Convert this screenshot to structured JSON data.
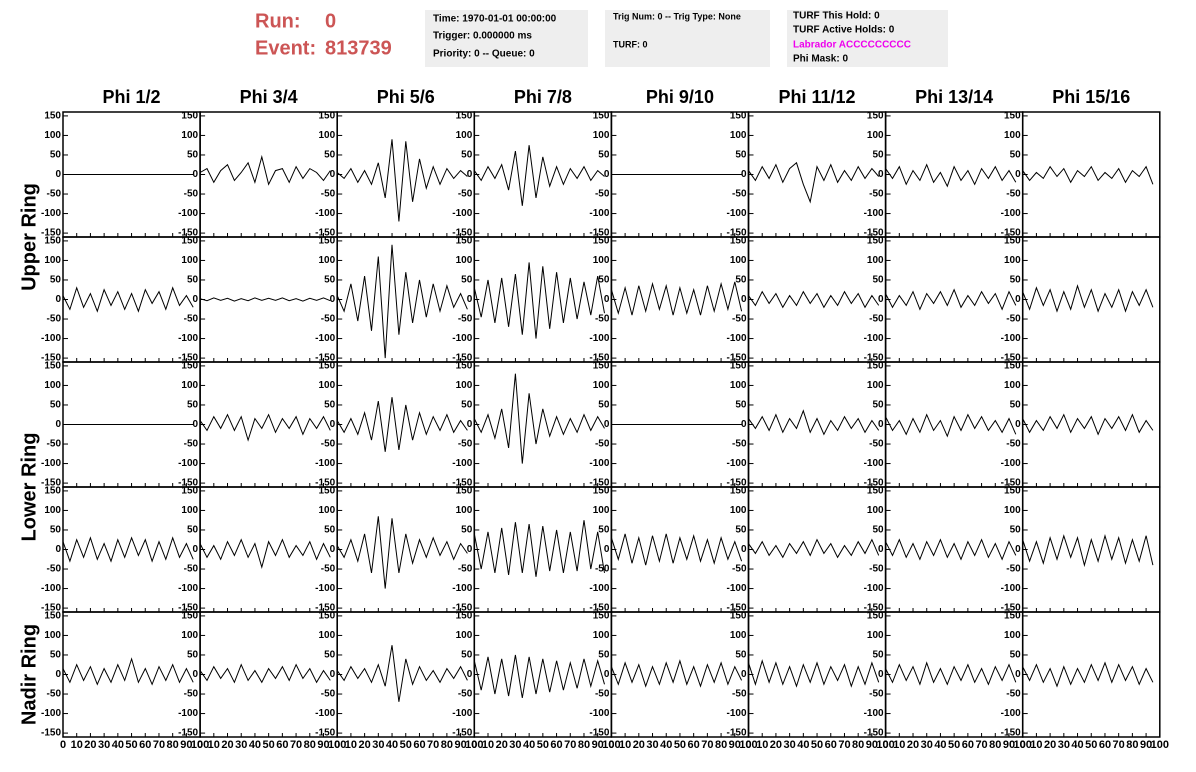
{
  "header": {
    "run_label": "Run:",
    "run": 0,
    "event_label": "Event:",
    "event": 813739,
    "info_box_1": [
      "Time: 1970-01-01 00:00:00",
      "Trigger: 0.000000 ms",
      "Priority: 0 -- Queue: 0"
    ],
    "info_box_2": [
      "Trig Num: 0 -- Trig Type: None",
      "TURF: 0"
    ],
    "info_box_3": [
      "TURF This Hold: 0",
      "TURF Active Holds: 0",
      "Labrador ACCCCCCCCC",
      "Phi Mask: 0"
    ]
  },
  "chart_data": {
    "type": "line",
    "color": "#000000",
    "columns": [
      "Phi 1/2",
      "Phi 3/4",
      "Phi 5/6",
      "Phi 7/8",
      "Phi 9/10",
      "Phi 11/12",
      "Phi 13/14",
      "Phi 15/16"
    ],
    "rows": [
      "Upper Ring",
      "Lower Ring",
      "Nadir Ring"
    ],
    "xlim": [
      0,
      100
    ],
    "xticks": [
      0,
      10,
      20,
      30,
      40,
      50,
      60,
      70,
      80,
      90,
      100
    ],
    "ylim": [
      -160,
      160
    ],
    "yticks": [
      -150,
      -100,
      -50,
      0,
      50,
      100,
      150
    ],
    "x": [
      0,
      5,
      10,
      15,
      20,
      25,
      30,
      35,
      40,
      45,
      50,
      55,
      60,
      65,
      70,
      75,
      80,
      85,
      90,
      95
    ],
    "panels": [
      {
        "values": [
          0,
          0,
          0,
          0,
          0,
          0,
          0,
          0,
          0,
          0,
          0,
          0,
          0,
          0,
          0,
          0,
          0,
          0,
          0,
          0
        ]
      },
      {
        "values": [
          5,
          15,
          -20,
          10,
          25,
          -15,
          5,
          30,
          -20,
          45,
          -25,
          10,
          15,
          -20,
          20,
          -10,
          15,
          5,
          -15,
          10
        ]
      },
      {
        "values": [
          5,
          -10,
          15,
          -20,
          10,
          -25,
          30,
          -60,
          90,
          -120,
          85,
          -70,
          40,
          -35,
          20,
          -25,
          15,
          -10,
          10,
          -5
        ]
      },
      {
        "values": [
          10,
          -15,
          20,
          -10,
          25,
          -40,
          60,
          -80,
          75,
          -60,
          45,
          -30,
          20,
          -25,
          15,
          -10,
          20,
          -15,
          10,
          -5
        ]
      },
      {
        "values": [
          0,
          0,
          0,
          0,
          0,
          0,
          0,
          0,
          0,
          0,
          0,
          0,
          0,
          0,
          0,
          0,
          0,
          0,
          0,
          0
        ]
      },
      {
        "values": [
          10,
          -15,
          20,
          -10,
          25,
          -20,
          15,
          30,
          -25,
          -70,
          20,
          -15,
          25,
          -20,
          10,
          -15,
          20,
          -10,
          15,
          -5
        ]
      },
      {
        "values": [
          15,
          -10,
          20,
          -25,
          10,
          -15,
          25,
          -20,
          5,
          -30,
          20,
          -15,
          10,
          -25,
          15,
          -10,
          20,
          -15,
          10,
          -20
        ]
      },
      {
        "values": [
          10,
          -15,
          5,
          -10,
          20,
          -5,
          15,
          -20,
          10,
          -5,
          20,
          -15,
          5,
          -10,
          15,
          -20,
          10,
          -5,
          20,
          -25
        ]
      },
      {
        "values": [
          10,
          -25,
          30,
          -20,
          15,
          -30,
          25,
          -15,
          20,
          -25,
          15,
          -30,
          25,
          -10,
          20,
          -25,
          30,
          -15,
          10,
          -20
        ]
      },
      {
        "values": [
          2,
          -3,
          4,
          -2,
          3,
          -4,
          2,
          -3,
          4,
          -2,
          3,
          -2,
          4,
          -3,
          2,
          -4,
          3,
          -2,
          4,
          -3
        ]
      },
      {
        "values": [
          10,
          -30,
          40,
          -55,
          60,
          -80,
          110,
          -150,
          140,
          -90,
          70,
          -60,
          50,
          -45,
          40,
          -30,
          35,
          -20,
          15,
          -25
        ]
      },
      {
        "values": [
          30,
          -45,
          50,
          -60,
          55,
          -70,
          65,
          -90,
          95,
          -100,
          85,
          -75,
          70,
          -60,
          55,
          -50,
          45,
          -40,
          60,
          -35
        ]
      },
      {
        "values": [
          25,
          -35,
          30,
          -40,
          35,
          -30,
          40,
          -25,
          35,
          -40,
          30,
          -35,
          25,
          -40,
          35,
          -30,
          40,
          -25,
          45,
          -30
        ]
      },
      {
        "values": [
          10,
          -15,
          20,
          -10,
          15,
          -20,
          10,
          -15,
          20,
          -10,
          15,
          -20,
          10,
          -15,
          20,
          -10,
          15,
          -20,
          10,
          -15
        ]
      },
      {
        "values": [
          15,
          -20,
          10,
          -15,
          20,
          -25,
          15,
          -10,
          20,
          -15,
          25,
          -20,
          10,
          -15,
          20,
          -10,
          15,
          -25,
          20,
          -15
        ]
      },
      {
        "values": [
          20,
          -25,
          30,
          -15,
          25,
          -30,
          20,
          -25,
          35,
          -20,
          25,
          -30,
          15,
          -20,
          25,
          -30,
          20,
          -15,
          25,
          -20
        ]
      },
      {
        "values": [
          0,
          0,
          0,
          0,
          0,
          0,
          0,
          0,
          0,
          0,
          0,
          0,
          0,
          0,
          0,
          0,
          0,
          0,
          0,
          0
        ]
      },
      {
        "values": [
          10,
          -15,
          20,
          -10,
          25,
          -15,
          20,
          -40,
          15,
          -10,
          25,
          -20,
          15,
          -10,
          20,
          -25,
          15,
          -10,
          20,
          -15
        ]
      },
      {
        "values": [
          10,
          -20,
          15,
          -25,
          30,
          -40,
          60,
          -70,
          70,
          -65,
          50,
          -40,
          30,
          -25,
          20,
          -15,
          25,
          -20,
          10,
          -15
        ]
      },
      {
        "values": [
          15,
          -20,
          25,
          -35,
          40,
          -60,
          130,
          -100,
          80,
          -50,
          40,
          -30,
          20,
          -25,
          15,
          -20,
          25,
          -15,
          20,
          -10
        ]
      },
      {
        "values": [
          0,
          0,
          0,
          0,
          0,
          0,
          0,
          0,
          0,
          0,
          0,
          0,
          0,
          0,
          0,
          0,
          0,
          0,
          0,
          0
        ]
      },
      {
        "values": [
          15,
          -10,
          20,
          -15,
          25,
          -20,
          15,
          -10,
          35,
          -20,
          15,
          -25,
          10,
          -15,
          20,
          -10,
          15,
          -20,
          10,
          -15
        ]
      },
      {
        "values": [
          20,
          -15,
          10,
          -25,
          15,
          -20,
          25,
          -15,
          10,
          -30,
          20,
          -15,
          25,
          -10,
          20,
          -15,
          10,
          -20,
          15,
          -25
        ]
      },
      {
        "values": [
          15,
          -20,
          10,
          -15,
          20,
          -10,
          25,
          -20,
          15,
          -10,
          20,
          -25,
          15,
          -10,
          20,
          -15,
          25,
          -20,
          10,
          -15
        ]
      },
      {
        "values": [
          20,
          -30,
          25,
          -20,
          30,
          -25,
          15,
          -30,
          25,
          -20,
          30,
          -15,
          25,
          -30,
          20,
          -25,
          30,
          -20,
          15,
          -25
        ]
      },
      {
        "values": [
          15,
          -20,
          10,
          -25,
          20,
          -15,
          25,
          -20,
          15,
          -45,
          20,
          -15,
          25,
          -20,
          10,
          -15,
          20,
          -25,
          15,
          -20
        ]
      },
      {
        "values": [
          10,
          -20,
          25,
          -30,
          40,
          -60,
          85,
          -100,
          80,
          -60,
          40,
          -35,
          25,
          -20,
          30,
          -15,
          20,
          -25,
          15,
          -10
        ]
      },
      {
        "values": [
          40,
          -50,
          45,
          -60,
          55,
          -65,
          70,
          -60,
          65,
          -70,
          60,
          -55,
          50,
          -60,
          45,
          -55,
          75,
          -50,
          45,
          -60
        ]
      },
      {
        "values": [
          30,
          -25,
          40,
          -35,
          30,
          -40,
          35,
          -30,
          40,
          -35,
          30,
          -25,
          35,
          -30,
          25,
          -35,
          30,
          -25,
          20,
          -30
        ]
      },
      {
        "values": [
          15,
          -10,
          20,
          -15,
          10,
          -20,
          15,
          -10,
          20,
          -15,
          25,
          -10,
          15,
          -20,
          10,
          -15,
          20,
          -10,
          25,
          -15
        ]
      },
      {
        "values": [
          20,
          -15,
          25,
          -20,
          15,
          -25,
          20,
          -15,
          25,
          -20,
          15,
          -25,
          20,
          -15,
          25,
          -20,
          15,
          -25,
          20,
          -15
        ]
      },
      {
        "values": [
          25,
          -30,
          20,
          -35,
          30,
          -25,
          35,
          -20,
          30,
          -40,
          25,
          -30,
          35,
          -25,
          30,
          -35,
          25,
          -30,
          35,
          -40
        ]
      },
      {
        "values": [
          15,
          -20,
          25,
          -15,
          20,
          -25,
          15,
          -20,
          25,
          -15,
          40,
          -20,
          15,
          -25,
          20,
          -15,
          25,
          -20,
          15,
          -20
        ]
      },
      {
        "values": [
          10,
          -15,
          20,
          -10,
          15,
          -20,
          25,
          -15,
          10,
          -20,
          15,
          -10,
          20,
          -15,
          25,
          -10,
          15,
          -20,
          10,
          -15
        ]
      },
      {
        "values": [
          10,
          -15,
          20,
          -10,
          15,
          -20,
          25,
          -30,
          75,
          -70,
          40,
          -25,
          20,
          -15,
          10,
          -20,
          15,
          -10,
          20,
          -15
        ]
      },
      {
        "values": [
          35,
          -40,
          45,
          -50,
          40,
          -55,
          50,
          -60,
          45,
          -50,
          40,
          -45,
          35,
          -40,
          30,
          -35,
          40,
          -30,
          35,
          -25
        ]
      },
      {
        "values": [
          20,
          -25,
          30,
          -20,
          25,
          -30,
          20,
          -25,
          30,
          -20,
          35,
          -25,
          20,
          -30,
          25,
          -20,
          30,
          -25,
          20,
          -15
        ]
      },
      {
        "values": [
          30,
          -25,
          35,
          -20,
          30,
          -25,
          20,
          -30,
          25,
          -20,
          30,
          -25,
          20,
          -15,
          25,
          -30,
          20,
          -25,
          30,
          -20
        ]
      },
      {
        "values": [
          15,
          -20,
          25,
          -15,
          20,
          -25,
          30,
          -20,
          15,
          -25,
          20,
          -15,
          25,
          -20,
          15,
          -25,
          20,
          -15,
          25,
          -20
        ]
      },
      {
        "values": [
          20,
          -15,
          25,
          -20,
          15,
          -30,
          20,
          -25,
          15,
          -20,
          25,
          -15,
          30,
          -20,
          25,
          -15,
          20,
          -25,
          15,
          -20
        ]
      }
    ]
  }
}
